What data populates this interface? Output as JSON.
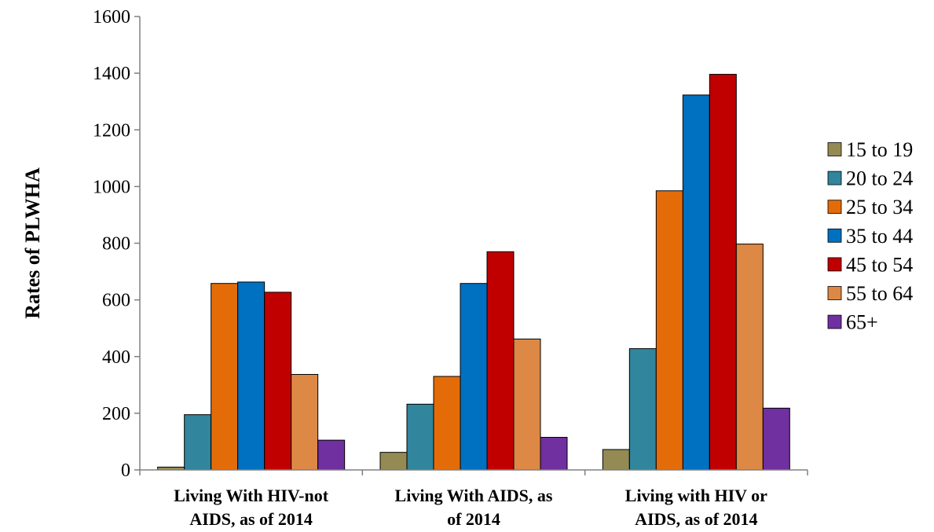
{
  "chart_data": {
    "type": "bar",
    "title": "",
    "xlabel": "",
    "ylabel": "Rates of PLWHA",
    "ylim": [
      0,
      1600
    ],
    "yticks": [
      0,
      200,
      400,
      600,
      800,
      1000,
      1200,
      1400,
      1600
    ],
    "grid": false,
    "legend_position": "right",
    "categories": [
      [
        "Living With HIV-not",
        "AIDS, as of 2014"
      ],
      [
        "Living With AIDS, as",
        "of 2014"
      ],
      [
        "Living with HIV or",
        "AIDS, as of 2014"
      ]
    ],
    "series": [
      {
        "name": "15 to 19",
        "color": "#948A54",
        "values": [
          10,
          62,
          72
        ]
      },
      {
        "name": "20 to 24",
        "color": "#31859C",
        "values": [
          195,
          232,
          428
        ]
      },
      {
        "name": "25 to 34",
        "color": "#E36C09",
        "values": [
          658,
          330,
          985
        ]
      },
      {
        "name": "35 to 44",
        "color": "#0070C0",
        "values": [
          663,
          658,
          1323
        ]
      },
      {
        "name": "45 to 54",
        "color": "#C00000",
        "values": [
          627,
          770,
          1396
        ]
      },
      {
        "name": "55 to 64",
        "color": "#DD8844",
        "values": [
          337,
          462,
          797
        ]
      },
      {
        "name": "65+",
        "color": "#7030A0",
        "values": [
          105,
          115,
          218
        ]
      }
    ]
  }
}
